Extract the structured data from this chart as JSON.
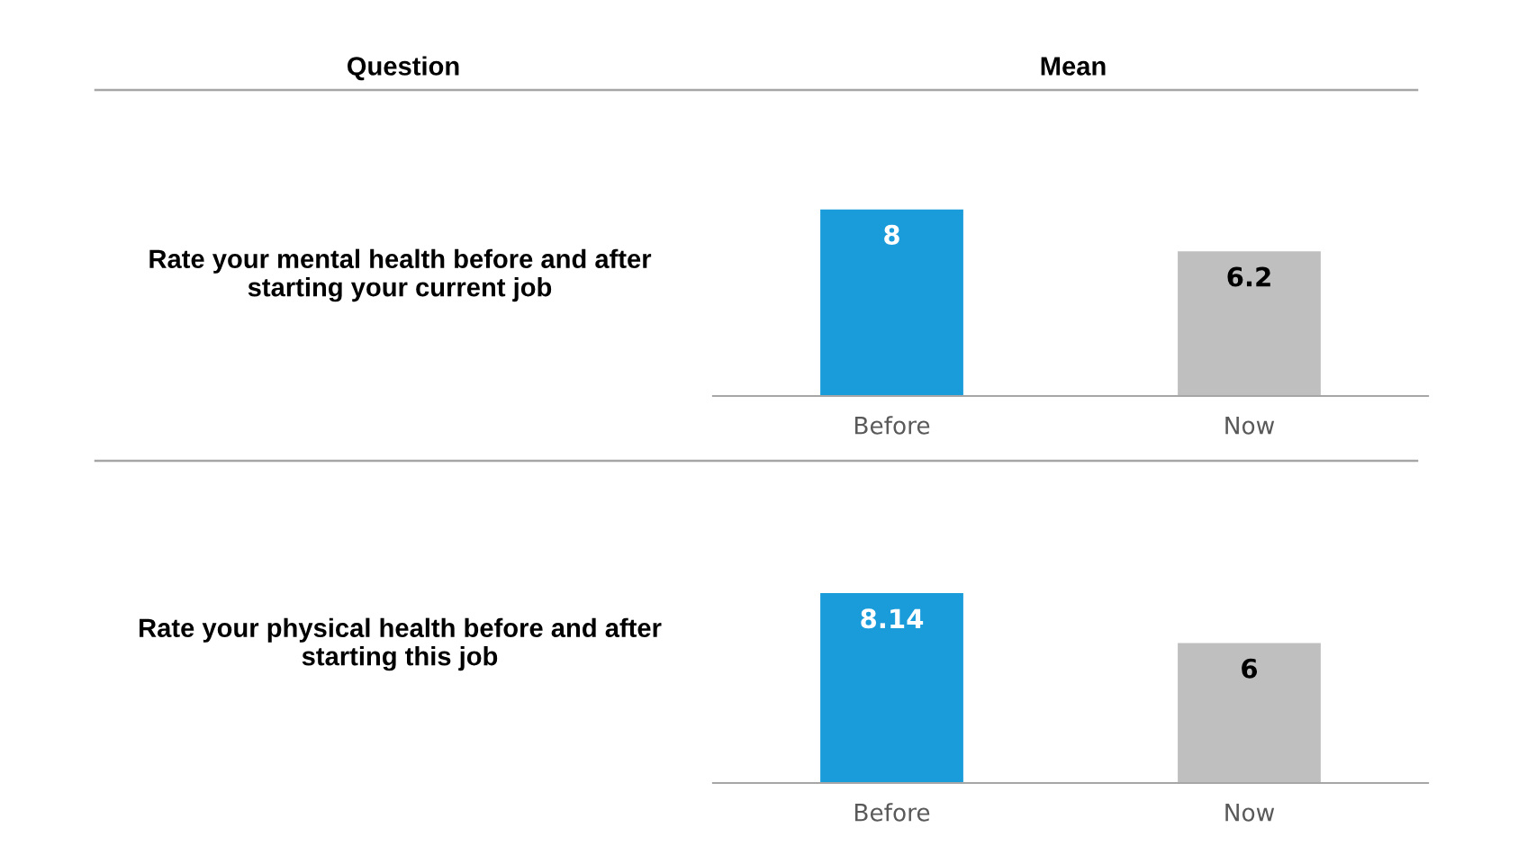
{
  "chart_data": [
    {
      "type": "bar",
      "title": "Rate your mental health before and after starting your current job",
      "annotations": [
        "Question",
        "Mean"
      ],
      "categories": [
        "Before",
        "Now"
      ],
      "values": [
        8,
        6.2
      ],
      "colors": [
        "#1a9cdb",
        "#bfbfbf"
      ],
      "data_labels": true,
      "tick_labels": "x",
      "grid": false,
      "legend": false
    },
    {
      "type": "bar",
      "title": "Rate your physical health before and after starting this job",
      "categories": [
        "Before",
        "Now"
      ],
      "values": [
        8.14,
        6
      ],
      "colors": [
        "#1a9cdb",
        "#bfbfbf"
      ],
      "data_labels": true,
      "tick_labels": "x",
      "grid": false,
      "legend": false
    }
  ]
}
